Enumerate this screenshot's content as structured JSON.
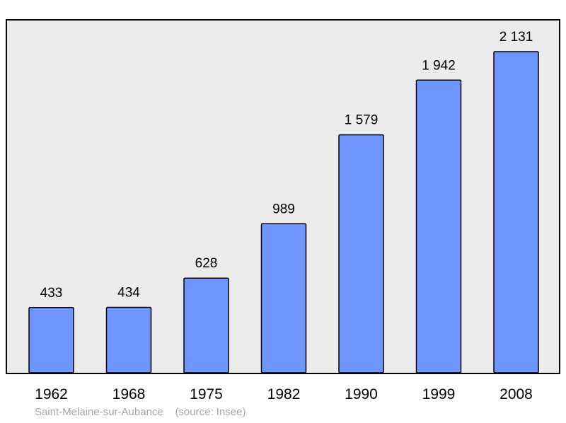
{
  "chart_data": {
    "type": "bar",
    "categories": [
      "1962",
      "1968",
      "1975",
      "1982",
      "1990",
      "1999",
      "2008"
    ],
    "values": [
      433,
      434,
      628,
      989,
      1579,
      1942,
      2131
    ],
    "value_labels": [
      "433",
      "434",
      "628",
      "989",
      "1 579",
      "1 942",
      "2 131"
    ],
    "title": "",
    "xlabel": "",
    "ylabel": "",
    "ylim": [
      0,
      2131
    ],
    "grid": false,
    "legend": "none"
  },
  "caption": {
    "place": "Saint-Melaine-sur-Aubance",
    "source": "(source: Insee)"
  },
  "colors": {
    "bar_fill": "#6f96ff",
    "bar_stroke": "#000000",
    "plot_background": "#ececec",
    "frame": "#000000",
    "caption_text": "#a6a6a6"
  }
}
